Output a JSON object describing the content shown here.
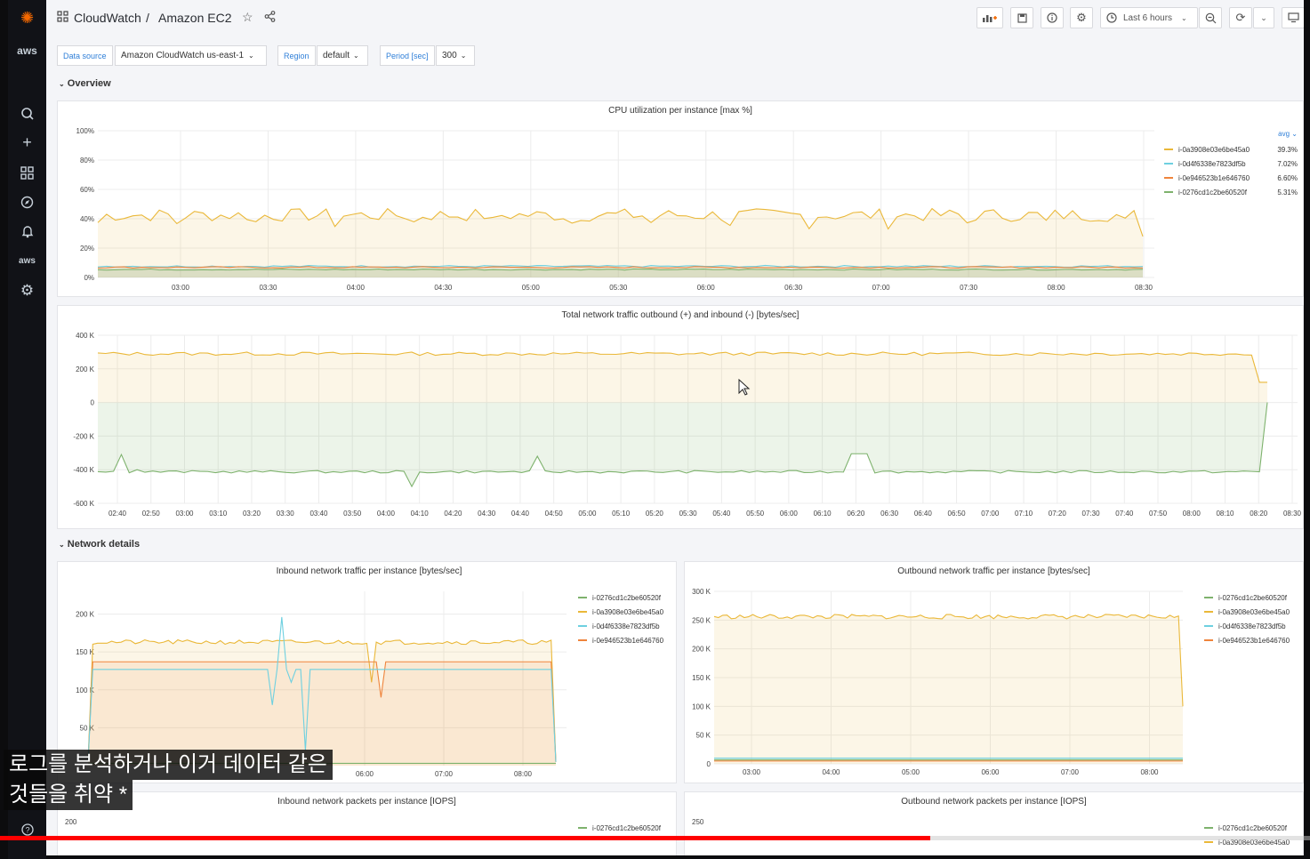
{
  "sidebar": {
    "icons": [
      "grafana-logo-icon",
      "aws-logo-icon",
      "search-icon",
      "plus-icon",
      "dashboards-icon",
      "explore-icon",
      "alert-bell-icon",
      "aws-icon",
      "gear-icon",
      "help-icon"
    ],
    "aws_label": "aws"
  },
  "header": {
    "folder": "CloudWatch",
    "separator": "/",
    "dashboard": "Amazon EC2",
    "time_range": "Last 6 hours"
  },
  "variables": {
    "datasource_label": "Data source",
    "datasource_value": "Amazon CloudWatch us-east-1",
    "region_label": "Region",
    "region_value": "default",
    "period_label": "Period [sec]",
    "period_value": "300"
  },
  "rows": {
    "overview": "Overview",
    "network": "Network details"
  },
  "colors": {
    "yellow": "#eab839",
    "teal": "#6ed0e0",
    "orange": "#ef843c",
    "green": "#7eb26d"
  },
  "panels": {
    "cpu": {
      "title": "CPU utilization per instance [max %]",
      "yticks": [
        "100%",
        "80%",
        "60%",
        "40%",
        "20%",
        "0%"
      ],
      "xticks": [
        "03:00",
        "03:30",
        "04:00",
        "04:30",
        "05:00",
        "05:30",
        "06:00",
        "06:30",
        "07:00",
        "07:30",
        "08:00",
        "08:30"
      ],
      "legend_header": "avg",
      "legend": [
        {
          "name": "i-0a3908e03e6be45a0",
          "value": "39.3%",
          "color": "#eab839"
        },
        {
          "name": "i-0d4f6338e7823df5b",
          "value": "7.02%",
          "color": "#6ed0e0"
        },
        {
          "name": "i-0e946523b1e646760",
          "value": "6.60%",
          "color": "#ef843c"
        },
        {
          "name": "i-0276cd1c2be60520f",
          "value": "5.31%",
          "color": "#7eb26d"
        }
      ]
    },
    "traffic": {
      "title": "Total network traffic outbound (+) and inbound (-) [bytes/sec]",
      "yticks": [
        "400 K",
        "200 K",
        "0",
        "-200 K",
        "-400 K",
        "-600 K"
      ],
      "xticks": [
        "02:40",
        "02:50",
        "03:00",
        "03:10",
        "03:20",
        "03:30",
        "03:40",
        "03:50",
        "04:00",
        "04:10",
        "04:20",
        "04:30",
        "04:40",
        "04:50",
        "05:00",
        "05:10",
        "05:20",
        "05:30",
        "05:40",
        "05:50",
        "06:00",
        "06:10",
        "06:20",
        "06:30",
        "06:40",
        "06:50",
        "07:00",
        "07:10",
        "07:20",
        "07:30",
        "07:40",
        "07:50",
        "08:00",
        "08:10",
        "08:20",
        "08:30"
      ]
    },
    "inbound": {
      "title": "Inbound network traffic per instance [bytes/sec]",
      "yticks": [
        "200 K",
        "150 K",
        "100 K",
        "50 K"
      ],
      "xticks": [
        "06:00",
        "07:00",
        "08:00"
      ],
      "legend": [
        {
          "name": "i-0276cd1c2be60520f",
          "color": "#7eb26d"
        },
        {
          "name": "i-0a3908e03e6be45a0",
          "color": "#eab839"
        },
        {
          "name": "i-0d4f6338e7823df5b",
          "color": "#6ed0e0"
        },
        {
          "name": "i-0e946523b1e646760",
          "color": "#ef843c"
        }
      ]
    },
    "outbound": {
      "title": "Outbound network traffic per instance [bytes/sec]",
      "yticks": [
        "300 K",
        "250 K",
        "200 K",
        "150 K",
        "100 K",
        "50 K",
        "0"
      ],
      "xticks": [
        "03:00",
        "04:00",
        "05:00",
        "06:00",
        "07:00",
        "08:00"
      ],
      "legend": [
        {
          "name": "i-0276cd1c2be60520f",
          "color": "#7eb26d"
        },
        {
          "name": "i-0a3908e03e6be45a0",
          "color": "#eab839"
        },
        {
          "name": "i-0d4f6338e7823df5b",
          "color": "#6ed0e0"
        },
        {
          "name": "i-0e946523b1e646760",
          "color": "#ef843c"
        }
      ]
    },
    "inbound_packets": {
      "title": "Inbound network packets per instance [IOPS]",
      "yticks": [
        "200"
      ],
      "legend": [
        {
          "name": "i-0276cd1c2be60520f",
          "color": "#7eb26d"
        }
      ]
    },
    "outbound_packets": {
      "title": "Outbound network packets per instance [IOPS]",
      "yticks": [
        "250"
      ],
      "legend": [
        {
          "name": "i-0276cd1c2be60520f",
          "color": "#7eb26d"
        },
        {
          "name": "i-0a3908e03e6be45a0",
          "color": "#eab839"
        }
      ]
    }
  },
  "subtitle": {
    "line1": "로그를 분석하거나 이거 데이터 같은",
    "line2": "것들을 취약 *"
  },
  "video": {
    "progress": 0.71
  }
}
